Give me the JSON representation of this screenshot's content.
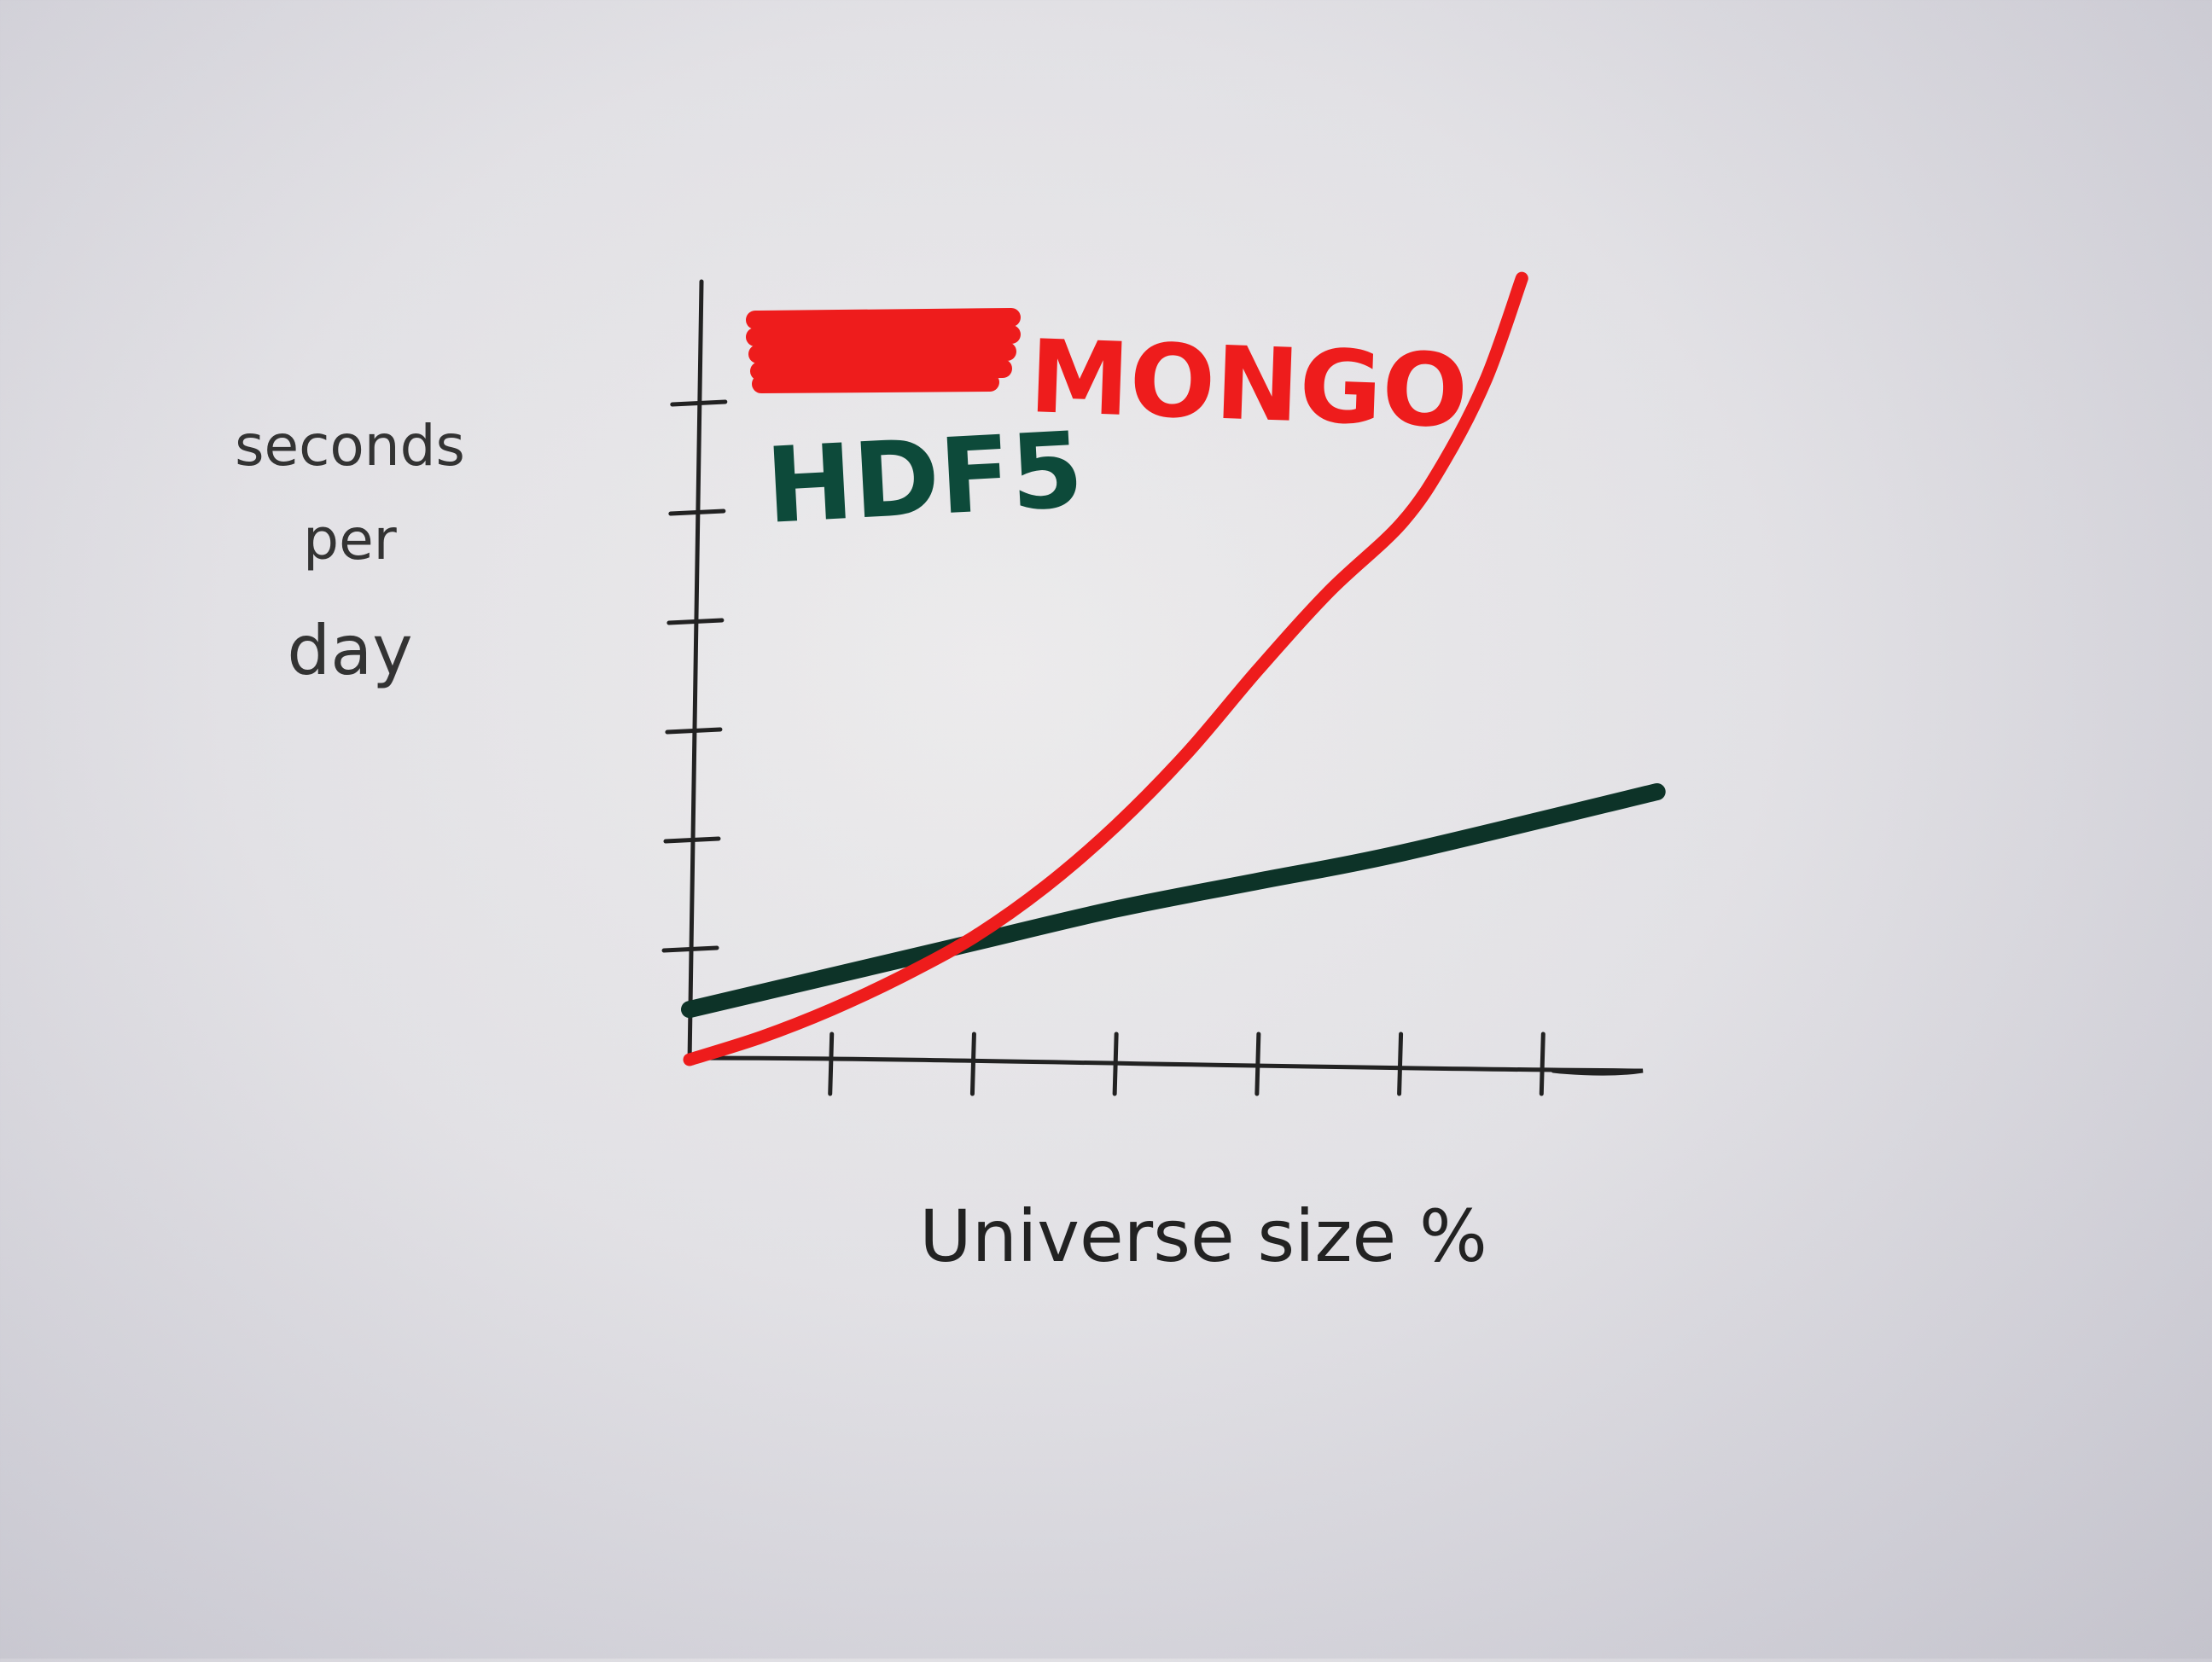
{
  "chart_data": {
    "type": "line",
    "title": "",
    "xlabel": "Universe size %",
    "ylabel": "seconds per day",
    "x_ticks": 6,
    "y_ticks": 6,
    "xlim": [
      0,
      6.7
    ],
    "ylim": [
      0,
      7.2
    ],
    "grid": false,
    "legend_position": "top-left",
    "struck_out_legend_text": true,
    "series": [
      {
        "name": "MONGO",
        "color": "#ee1c1c",
        "x": [
          0,
          0.5,
          1,
          1.5,
          2,
          2.5,
          3,
          3.5,
          4,
          4.5,
          5,
          5.3,
          5.6,
          5.85
        ],
        "y": [
          0,
          0.2,
          0.45,
          0.75,
          1.1,
          1.55,
          2.1,
          2.75,
          3.5,
          4.2,
          4.8,
          5.35,
          6.1,
          7.0
        ]
      },
      {
        "name": "HDF5",
        "color": "#0d3328",
        "x": [
          0,
          1,
          2,
          3,
          4,
          5,
          6.8
        ],
        "y": [
          0.45,
          0.75,
          1.05,
          1.35,
          1.6,
          1.85,
          2.4
        ]
      }
    ]
  }
}
